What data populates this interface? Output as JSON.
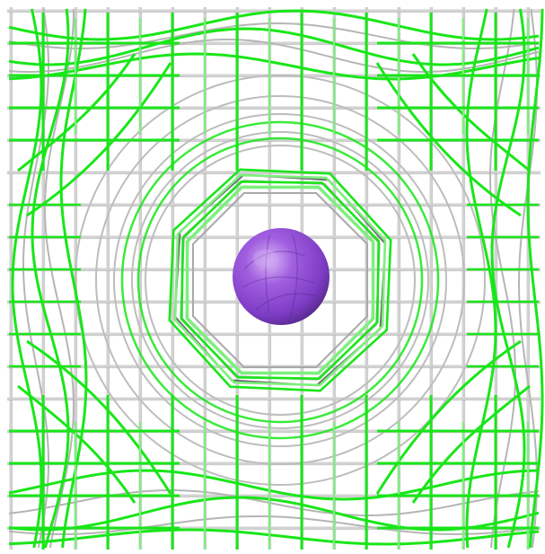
{
  "scene": {
    "subject": "molecular-isosurface-render",
    "background_color": "#ffffff",
    "colors": {
      "grid_light": "#d2d2d2",
      "grid_shadow": "#8c8c8c",
      "mesh_green": "#19e619",
      "mesh_green_light": "#7cf07c",
      "atom_purple": "#9a4fd6",
      "atom_highlight": "#c9a0f0",
      "atom_shadow": "#5a2a90"
    },
    "icons": [
      "grid-lattice",
      "green-contour-mesh",
      "gray-contour-mesh",
      "atom-sphere"
    ]
  }
}
